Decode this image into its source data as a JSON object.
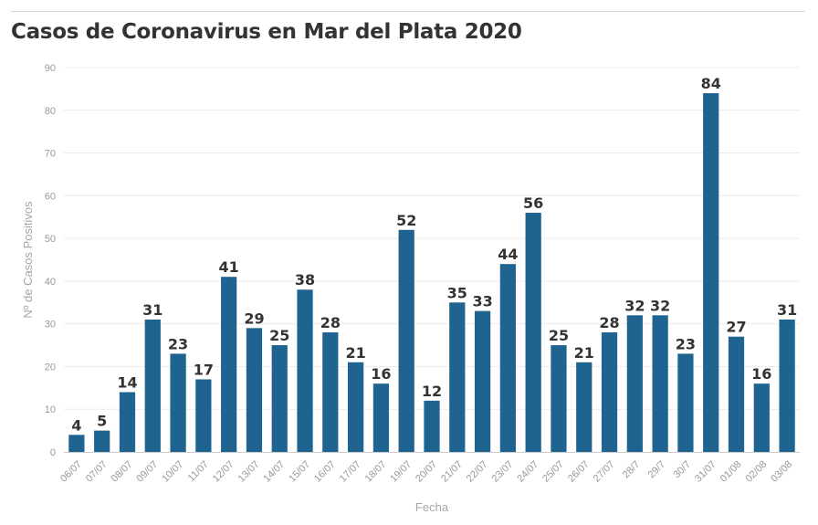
{
  "chart_data": {
    "type": "bar",
    "title": "Casos de Coronavirus en Mar del Plata 2020",
    "xlabel": "Fecha",
    "ylabel": "Nº de Casos Positivos",
    "ylim": [
      0,
      90
    ],
    "yticks": [
      0,
      10,
      20,
      30,
      40,
      50,
      60,
      70,
      80,
      90
    ],
    "grid": true,
    "bar_color": "#1f6391",
    "categories": [
      "06/07",
      "07/07",
      "08/07",
      "09/07",
      "10/07",
      "11/07",
      "12/07",
      "13/07",
      "14/07",
      "15/07",
      "16/07",
      "17/07",
      "18/07",
      "19/07",
      "20/07",
      "21/07",
      "22/07",
      "23/07",
      "24/07",
      "25/07",
      "26/07",
      "27/07",
      "28/7",
      "29/7",
      "30/7",
      "31/07",
      "01/08",
      "02/08",
      "03/08"
    ],
    "values": [
      4,
      5,
      14,
      31,
      23,
      17,
      41,
      29,
      25,
      38,
      28,
      21,
      16,
      52,
      12,
      35,
      33,
      44,
      56,
      25,
      21,
      28,
      32,
      32,
      23,
      84,
      27,
      16,
      31
    ]
  }
}
